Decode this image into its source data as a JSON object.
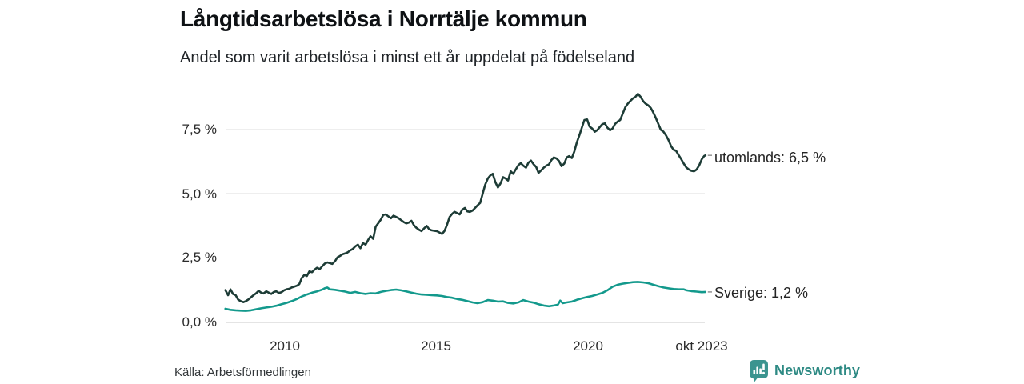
{
  "header": {
    "title": "Långtidsarbetslösa i Norrtälje kommun",
    "subtitle": "Andel som varit arbetslösa i minst ett år uppdelat på födelseland"
  },
  "footer": {
    "source": "Källa: Arbetsförmedlingen",
    "brand_name": "Newsworthy",
    "brand_icon": "bar-chart-speech-bubble-icon"
  },
  "colors": {
    "utomlands_line": "#1d3c36",
    "sverige_line": "#13998c",
    "grid": "#dddddd",
    "axis_line": "#c9c9c9",
    "connector": "#9a9a9a",
    "brand_teal": "#3b948f"
  },
  "chart_data": {
    "type": "line",
    "title": "Långtidsarbetslösa i Norrtälje kommun",
    "subtitle": "Andel som varit arbetslösa i minst ett år uppdelat på födelseland",
    "x_unit": "decimal_year",
    "x_range": [
      2008.08,
      2023.79
    ],
    "ylim": [
      0,
      9.2
    ],
    "grid": "horizontal",
    "legend_position": "line-end-labels-right",
    "yticks": [
      {
        "value": 0.0,
        "label": "0,0 %"
      },
      {
        "value": 2.5,
        "label": "2,5 %"
      },
      {
        "value": 5.0,
        "label": "5,0 %"
      },
      {
        "value": 7.5,
        "label": "7,5 %"
      }
    ],
    "xticks": [
      {
        "value": 2010,
        "label": "2010"
      },
      {
        "value": 2015,
        "label": "2015"
      },
      {
        "value": 2020,
        "label": "2020"
      },
      {
        "value": 2023.75,
        "label": "okt 2023"
      }
    ],
    "series": [
      {
        "name": "utomlands",
        "end_label": "utomlands: 6,5 %",
        "end_value_label": "6,5 %",
        "color": "#1d3c36",
        "points": [
          [
            2008.08,
            1.25
          ],
          [
            2008.17,
            1.05
          ],
          [
            2008.25,
            1.28
          ],
          [
            2008.33,
            1.1
          ],
          [
            2008.42,
            1.05
          ],
          [
            2008.5,
            0.88
          ],
          [
            2008.58,
            0.82
          ],
          [
            2008.67,
            0.78
          ],
          [
            2008.75,
            0.82
          ],
          [
            2008.83,
            0.88
          ],
          [
            2008.92,
            0.97
          ],
          [
            2009.0,
            1.05
          ],
          [
            2009.08,
            1.12
          ],
          [
            2009.17,
            1.22
          ],
          [
            2009.25,
            1.15
          ],
          [
            2009.33,
            1.12
          ],
          [
            2009.42,
            1.2
          ],
          [
            2009.5,
            1.15
          ],
          [
            2009.58,
            1.1
          ],
          [
            2009.67,
            1.18
          ],
          [
            2009.75,
            1.2
          ],
          [
            2009.83,
            1.14
          ],
          [
            2009.92,
            1.17
          ],
          [
            2010.0,
            1.24
          ],
          [
            2010.08,
            1.28
          ],
          [
            2010.17,
            1.3
          ],
          [
            2010.25,
            1.35
          ],
          [
            2010.33,
            1.38
          ],
          [
            2010.42,
            1.42
          ],
          [
            2010.5,
            1.48
          ],
          [
            2010.58,
            1.72
          ],
          [
            2010.67,
            1.85
          ],
          [
            2010.75,
            1.8
          ],
          [
            2010.83,
            1.98
          ],
          [
            2010.92,
            1.95
          ],
          [
            2011.0,
            2.05
          ],
          [
            2011.08,
            2.12
          ],
          [
            2011.17,
            2.07
          ],
          [
            2011.25,
            2.18
          ],
          [
            2011.33,
            2.28
          ],
          [
            2011.42,
            2.33
          ],
          [
            2011.5,
            2.3
          ],
          [
            2011.58,
            2.27
          ],
          [
            2011.67,
            2.38
          ],
          [
            2011.75,
            2.53
          ],
          [
            2011.83,
            2.58
          ],
          [
            2011.92,
            2.65
          ],
          [
            2012.0,
            2.68
          ],
          [
            2012.08,
            2.72
          ],
          [
            2012.17,
            2.8
          ],
          [
            2012.25,
            2.85
          ],
          [
            2012.33,
            2.95
          ],
          [
            2012.42,
            3.02
          ],
          [
            2012.5,
            2.88
          ],
          [
            2012.58,
            3.08
          ],
          [
            2012.67,
            3.02
          ],
          [
            2012.75,
            3.2
          ],
          [
            2012.83,
            3.35
          ],
          [
            2012.92,
            3.25
          ],
          [
            2013.0,
            3.72
          ],
          [
            2013.08,
            3.85
          ],
          [
            2013.17,
            4.0
          ],
          [
            2013.25,
            4.18
          ],
          [
            2013.33,
            4.2
          ],
          [
            2013.42,
            4.12
          ],
          [
            2013.5,
            4.05
          ],
          [
            2013.58,
            4.15
          ],
          [
            2013.67,
            4.1
          ],
          [
            2013.75,
            4.05
          ],
          [
            2013.83,
            3.98
          ],
          [
            2013.92,
            3.9
          ],
          [
            2014.0,
            3.85
          ],
          [
            2014.08,
            3.88
          ],
          [
            2014.17,
            3.95
          ],
          [
            2014.25,
            3.78
          ],
          [
            2014.33,
            3.68
          ],
          [
            2014.42,
            3.6
          ],
          [
            2014.5,
            3.55
          ],
          [
            2014.58,
            3.65
          ],
          [
            2014.67,
            3.75
          ],
          [
            2014.75,
            3.62
          ],
          [
            2014.83,
            3.58
          ],
          [
            2014.92,
            3.56
          ],
          [
            2015.0,
            3.55
          ],
          [
            2015.08,
            3.5
          ],
          [
            2015.17,
            3.44
          ],
          [
            2015.25,
            3.55
          ],
          [
            2015.33,
            3.78
          ],
          [
            2015.42,
            4.1
          ],
          [
            2015.5,
            4.22
          ],
          [
            2015.58,
            4.3
          ],
          [
            2015.67,
            4.25
          ],
          [
            2015.75,
            4.2
          ],
          [
            2015.83,
            4.38
          ],
          [
            2015.92,
            4.45
          ],
          [
            2016.0,
            4.32
          ],
          [
            2016.08,
            4.3
          ],
          [
            2016.17,
            4.35
          ],
          [
            2016.25,
            4.45
          ],
          [
            2016.33,
            4.55
          ],
          [
            2016.42,
            4.65
          ],
          [
            2016.5,
            5.0
          ],
          [
            2016.58,
            5.35
          ],
          [
            2016.67,
            5.6
          ],
          [
            2016.75,
            5.72
          ],
          [
            2016.83,
            5.78
          ],
          [
            2016.92,
            5.45
          ],
          [
            2017.0,
            5.25
          ],
          [
            2017.08,
            5.4
          ],
          [
            2017.17,
            5.65
          ],
          [
            2017.25,
            5.6
          ],
          [
            2017.33,
            5.52
          ],
          [
            2017.42,
            5.88
          ],
          [
            2017.5,
            5.78
          ],
          [
            2017.58,
            5.95
          ],
          [
            2017.67,
            6.12
          ],
          [
            2017.75,
            6.2
          ],
          [
            2017.83,
            6.1
          ],
          [
            2017.92,
            6.02
          ],
          [
            2018.0,
            6.22
          ],
          [
            2018.08,
            6.3
          ],
          [
            2018.17,
            6.15
          ],
          [
            2018.25,
            6.05
          ],
          [
            2018.33,
            5.82
          ],
          [
            2018.42,
            5.92
          ],
          [
            2018.5,
            6.02
          ],
          [
            2018.58,
            6.1
          ],
          [
            2018.67,
            6.15
          ],
          [
            2018.75,
            6.32
          ],
          [
            2018.83,
            6.42
          ],
          [
            2018.92,
            6.38
          ],
          [
            2019.0,
            6.28
          ],
          [
            2019.08,
            6.08
          ],
          [
            2019.17,
            6.18
          ],
          [
            2019.25,
            6.42
          ],
          [
            2019.33,
            6.47
          ],
          [
            2019.42,
            6.4
          ],
          [
            2019.5,
            6.65
          ],
          [
            2019.58,
            7.0
          ],
          [
            2019.67,
            7.3
          ],
          [
            2019.75,
            7.6
          ],
          [
            2019.83,
            7.88
          ],
          [
            2019.92,
            7.9
          ],
          [
            2020.0,
            7.62
          ],
          [
            2020.08,
            7.55
          ],
          [
            2020.17,
            7.42
          ],
          [
            2020.25,
            7.48
          ],
          [
            2020.33,
            7.6
          ],
          [
            2020.42,
            7.72
          ],
          [
            2020.5,
            7.75
          ],
          [
            2020.58,
            7.58
          ],
          [
            2020.67,
            7.48
          ],
          [
            2020.75,
            7.55
          ],
          [
            2020.83,
            7.72
          ],
          [
            2020.92,
            7.82
          ],
          [
            2021.0,
            7.88
          ],
          [
            2021.08,
            8.12
          ],
          [
            2021.17,
            8.38
          ],
          [
            2021.25,
            8.52
          ],
          [
            2021.33,
            8.62
          ],
          [
            2021.42,
            8.72
          ],
          [
            2021.5,
            8.78
          ],
          [
            2021.58,
            8.9
          ],
          [
            2021.67,
            8.78
          ],
          [
            2021.75,
            8.62
          ],
          [
            2021.83,
            8.52
          ],
          [
            2021.92,
            8.45
          ],
          [
            2022.0,
            8.35
          ],
          [
            2022.08,
            8.18
          ],
          [
            2022.17,
            7.95
          ],
          [
            2022.25,
            7.72
          ],
          [
            2022.33,
            7.5
          ],
          [
            2022.42,
            7.42
          ],
          [
            2022.5,
            7.28
          ],
          [
            2022.58,
            7.1
          ],
          [
            2022.67,
            6.85
          ],
          [
            2022.75,
            6.72
          ],
          [
            2022.83,
            6.68
          ],
          [
            2022.92,
            6.5
          ],
          [
            2023.0,
            6.35
          ],
          [
            2023.08,
            6.18
          ],
          [
            2023.17,
            6.02
          ],
          [
            2023.25,
            5.95
          ],
          [
            2023.33,
            5.9
          ],
          [
            2023.42,
            5.88
          ],
          [
            2023.5,
            5.95
          ],
          [
            2023.58,
            6.1
          ],
          [
            2023.67,
            6.35
          ],
          [
            2023.75,
            6.48
          ],
          [
            2023.79,
            6.5
          ]
        ]
      },
      {
        "name": "Sverige",
        "end_label": "Sverige: 1,2 %",
        "end_value_label": "1,2 %",
        "color": "#13998c",
        "points": [
          [
            2008.08,
            0.52
          ],
          [
            2008.25,
            0.48
          ],
          [
            2008.42,
            0.46
          ],
          [
            2008.58,
            0.45
          ],
          [
            2008.75,
            0.44
          ],
          [
            2008.92,
            0.46
          ],
          [
            2009.08,
            0.5
          ],
          [
            2009.25,
            0.54
          ],
          [
            2009.42,
            0.57
          ],
          [
            2009.58,
            0.6
          ],
          [
            2009.75,
            0.64
          ],
          [
            2009.92,
            0.7
          ],
          [
            2010.08,
            0.75
          ],
          [
            2010.25,
            0.82
          ],
          [
            2010.42,
            0.9
          ],
          [
            2010.58,
            1.0
          ],
          [
            2010.75,
            1.08
          ],
          [
            2010.92,
            1.15
          ],
          [
            2011.08,
            1.2
          ],
          [
            2011.25,
            1.27
          ],
          [
            2011.33,
            1.32
          ],
          [
            2011.42,
            1.35
          ],
          [
            2011.5,
            1.28
          ],
          [
            2011.67,
            1.26
          ],
          [
            2011.83,
            1.23
          ],
          [
            2012.0,
            1.19
          ],
          [
            2012.17,
            1.14
          ],
          [
            2012.33,
            1.18
          ],
          [
            2012.5,
            1.13
          ],
          [
            2012.67,
            1.1
          ],
          [
            2012.83,
            1.13
          ],
          [
            2013.0,
            1.12
          ],
          [
            2013.17,
            1.18
          ],
          [
            2013.33,
            1.22
          ],
          [
            2013.5,
            1.25
          ],
          [
            2013.67,
            1.27
          ],
          [
            2013.83,
            1.24
          ],
          [
            2014.0,
            1.2
          ],
          [
            2014.17,
            1.15
          ],
          [
            2014.33,
            1.11
          ],
          [
            2014.5,
            1.08
          ],
          [
            2014.67,
            1.07
          ],
          [
            2014.83,
            1.05
          ],
          [
            2015.0,
            1.04
          ],
          [
            2015.17,
            1.02
          ],
          [
            2015.33,
            0.98
          ],
          [
            2015.5,
            0.95
          ],
          [
            2015.67,
            0.9
          ],
          [
            2015.83,
            0.87
          ],
          [
            2016.0,
            0.82
          ],
          [
            2016.17,
            0.77
          ],
          [
            2016.33,
            0.74
          ],
          [
            2016.5,
            0.78
          ],
          [
            2016.67,
            0.86
          ],
          [
            2016.83,
            0.84
          ],
          [
            2017.0,
            0.8
          ],
          [
            2017.17,
            0.81
          ],
          [
            2017.33,
            0.75
          ],
          [
            2017.5,
            0.73
          ],
          [
            2017.67,
            0.77
          ],
          [
            2017.83,
            0.86
          ],
          [
            2018.0,
            0.8
          ],
          [
            2018.17,
            0.76
          ],
          [
            2018.33,
            0.7
          ],
          [
            2018.5,
            0.65
          ],
          [
            2018.67,
            0.62
          ],
          [
            2018.83,
            0.65
          ],
          [
            2018.96,
            0.68
          ],
          [
            2019.04,
            0.84
          ],
          [
            2019.12,
            0.74
          ],
          [
            2019.25,
            0.77
          ],
          [
            2019.42,
            0.8
          ],
          [
            2019.58,
            0.87
          ],
          [
            2019.75,
            0.93
          ],
          [
            2019.92,
            0.98
          ],
          [
            2020.08,
            1.02
          ],
          [
            2020.25,
            1.08
          ],
          [
            2020.42,
            1.14
          ],
          [
            2020.58,
            1.24
          ],
          [
            2020.75,
            1.38
          ],
          [
            2020.92,
            1.46
          ],
          [
            2021.08,
            1.5
          ],
          [
            2021.25,
            1.53
          ],
          [
            2021.42,
            1.56
          ],
          [
            2021.58,
            1.57
          ],
          [
            2021.75,
            1.55
          ],
          [
            2021.92,
            1.52
          ],
          [
            2022.08,
            1.46
          ],
          [
            2022.25,
            1.4
          ],
          [
            2022.42,
            1.35
          ],
          [
            2022.58,
            1.32
          ],
          [
            2022.75,
            1.29
          ],
          [
            2022.92,
            1.28
          ],
          [
            2023.08,
            1.28
          ],
          [
            2023.17,
            1.24
          ],
          [
            2023.33,
            1.21
          ],
          [
            2023.5,
            1.19
          ],
          [
            2023.67,
            1.17
          ],
          [
            2023.79,
            1.18
          ]
        ]
      }
    ]
  }
}
